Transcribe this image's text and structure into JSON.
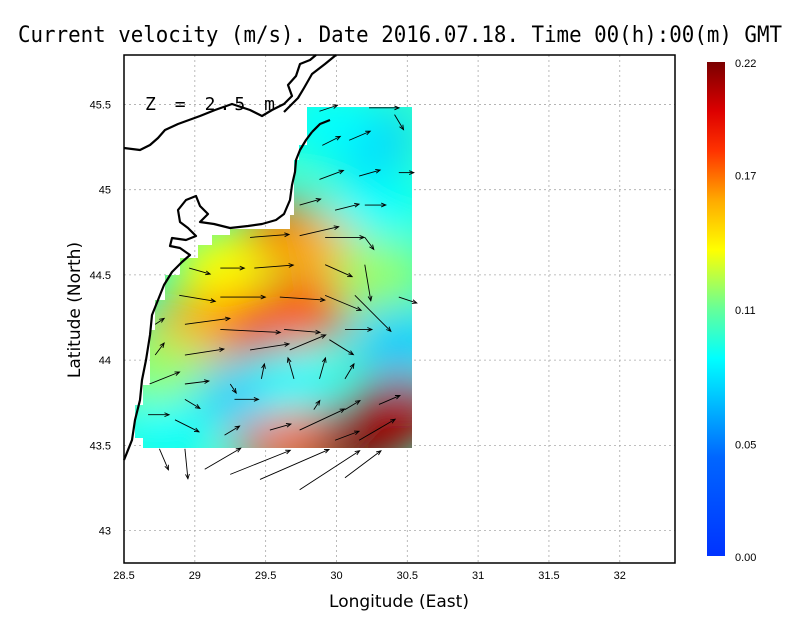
{
  "title": "Current velocity (m/s). Date 2016.07.18. Time 00(h):00(m) GMT",
  "depth_label": "Z = 2.5 m",
  "chart_data": {
    "type": "vector-field-map",
    "title": "Current velocity (m/s). Date 2016.07.18. Time 00(h):00(m) GMT",
    "xlabel": "Longitude (East)",
    "ylabel": "Latitude (North)",
    "xlim": [
      28.5,
      32.39
    ],
    "ylim": [
      42.81,
      45.79
    ],
    "xticks": [
      "28.5",
      "29",
      "29.5",
      "30",
      "30.5",
      "31",
      "31.5",
      "32"
    ],
    "xtick_values": [
      28.5,
      29,
      29.5,
      30,
      30.5,
      31,
      31.5,
      32
    ],
    "yticks": [
      "43",
      "43.5",
      "44",
      "44.5",
      "45",
      "45.5"
    ],
    "ytick_values": [
      43,
      43.5,
      44,
      44.5,
      45,
      45.5
    ],
    "grid": true,
    "colorbar": {
      "min": 0.0,
      "max": 0.22,
      "tick_labels": [
        "0.00",
        "0.05",
        "0.11",
        "0.17",
        "0.22"
      ],
      "tick_values": [
        0.0,
        0.05,
        0.11,
        0.17,
        0.22
      ],
      "colors": [
        "#0033ff",
        "#0077ff",
        "#00ccff",
        "#00ffff",
        "#33ffcc",
        "#99ff66",
        "#ffff00",
        "#ffaa00",
        "#ff5500",
        "#ff0000",
        "#aa0000",
        "#7a0000"
      ]
    },
    "background_speed": 0.085,
    "speed_field": [
      {
        "lon": 29.45,
        "lat": 44.2,
        "speed": 0.21
      },
      {
        "lon": 29.15,
        "lat": 44.22,
        "speed": 0.17
      },
      {
        "lon": 29.75,
        "lat": 44.28,
        "speed": 0.16
      },
      {
        "lon": 28.95,
        "lat": 44.15,
        "speed": 0.15
      },
      {
        "lon": 29.65,
        "lat": 44.72,
        "speed": 0.17
      },
      {
        "lon": 29.9,
        "lat": 44.65,
        "speed": 0.13
      },
      {
        "lon": 29.2,
        "lat": 44.55,
        "speed": 0.12
      },
      {
        "lon": 30.3,
        "lat": 44.5,
        "speed": 0.1
      },
      {
        "lon": 29.9,
        "lat": 43.52,
        "speed": 0.21
      },
      {
        "lon": 30.2,
        "lat": 43.55,
        "speed": 0.21
      },
      {
        "lon": 30.45,
        "lat": 43.7,
        "speed": 0.19
      },
      {
        "lon": 29.6,
        "lat": 43.55,
        "speed": 0.16
      },
      {
        "lon": 29.3,
        "lat": 43.8,
        "speed": 0.04
      },
      {
        "lon": 28.8,
        "lat": 43.6,
        "speed": 0.05
      },
      {
        "lon": 29.7,
        "lat": 43.88,
        "speed": 0.06
      },
      {
        "lon": 30.2,
        "lat": 45.3,
        "speed": 0.04
      },
      {
        "lon": 29.95,
        "lat": 45.38,
        "speed": 0.05
      },
      {
        "lon": 30.45,
        "lat": 44.1,
        "speed": 0.04
      },
      {
        "lon": 30.3,
        "lat": 44.9,
        "speed": 0.06
      },
      {
        "lon": 28.75,
        "lat": 43.95,
        "speed": 0.1
      }
    ],
    "vectors": [
      {
        "lon": 29.88,
        "lat": 45.46,
        "u": 0.06,
        "v": 0.02
      },
      {
        "lon": 30.23,
        "lat": 45.48,
        "u": 0.1,
        "v": 0.0
      },
      {
        "lon": 30.41,
        "lat": 45.44,
        "u": 0.03,
        "v": -0.05
      },
      {
        "lon": 29.9,
        "lat": 45.26,
        "u": 0.06,
        "v": 0.03
      },
      {
        "lon": 30.09,
        "lat": 45.29,
        "u": 0.07,
        "v": 0.03
      },
      {
        "lon": 29.88,
        "lat": 45.06,
        "u": 0.08,
        "v": 0.03
      },
      {
        "lon": 30.16,
        "lat": 45.08,
        "u": 0.07,
        "v": 0.02
      },
      {
        "lon": 30.44,
        "lat": 45.1,
        "u": 0.05,
        "v": 0.0
      },
      {
        "lon": 29.74,
        "lat": 44.91,
        "u": 0.07,
        "v": 0.02
      },
      {
        "lon": 29.99,
        "lat": 44.88,
        "u": 0.08,
        "v": 0.02
      },
      {
        "lon": 30.2,
        "lat": 44.91,
        "u": 0.07,
        "v": 0.0
      },
      {
        "lon": 29.39,
        "lat": 44.72,
        "u": 0.13,
        "v": 0.01
      },
      {
        "lon": 29.74,
        "lat": 44.73,
        "u": 0.13,
        "v": 0.03
      },
      {
        "lon": 29.92,
        "lat": 44.72,
        "u": 0.13,
        "v": 0.0
      },
      {
        "lon": 30.2,
        "lat": 44.72,
        "u": 0.03,
        "v": -0.04
      },
      {
        "lon": 28.96,
        "lat": 44.54,
        "u": 0.07,
        "v": -0.02
      },
      {
        "lon": 29.18,
        "lat": 44.54,
        "u": 0.08,
        "v": 0.0
      },
      {
        "lon": 29.42,
        "lat": 44.54,
        "u": 0.13,
        "v": 0.01
      },
      {
        "lon": 29.92,
        "lat": 44.56,
        "u": 0.09,
        "v": -0.04
      },
      {
        "lon": 30.2,
        "lat": 44.56,
        "u": 0.02,
        "v": -0.12
      },
      {
        "lon": 28.89,
        "lat": 44.38,
        "u": 0.12,
        "v": -0.02
      },
      {
        "lon": 29.18,
        "lat": 44.37,
        "u": 0.15,
        "v": 0.0
      },
      {
        "lon": 29.6,
        "lat": 44.37,
        "u": 0.15,
        "v": -0.01
      },
      {
        "lon": 29.92,
        "lat": 44.38,
        "u": 0.12,
        "v": -0.05
      },
      {
        "lon": 30.13,
        "lat": 44.38,
        "u": 0.12,
        "v": -0.12
      },
      {
        "lon": 30.44,
        "lat": 44.37,
        "u": 0.06,
        "v": -0.02
      },
      {
        "lon": 28.72,
        "lat": 44.21,
        "u": 0.03,
        "v": 0.02
      },
      {
        "lon": 28.93,
        "lat": 44.21,
        "u": 0.15,
        "v": 0.02
      },
      {
        "lon": 29.18,
        "lat": 44.18,
        "u": 0.2,
        "v": -0.01
      },
      {
        "lon": 29.63,
        "lat": 44.18,
        "u": 0.12,
        "v": -0.01
      },
      {
        "lon": 30.06,
        "lat": 44.18,
        "u": 0.09,
        "v": 0.0
      },
      {
        "lon": 28.72,
        "lat": 44.03,
        "u": 0.03,
        "v": 0.04
      },
      {
        "lon": 28.93,
        "lat": 44.03,
        "u": 0.13,
        "v": 0.02
      },
      {
        "lon": 29.39,
        "lat": 44.06,
        "u": 0.13,
        "v": 0.02
      },
      {
        "lon": 29.67,
        "lat": 44.06,
        "u": 0.12,
        "v": 0.05
      },
      {
        "lon": 29.95,
        "lat": 44.12,
        "u": 0.08,
        "v": -0.05
      },
      {
        "lon": 28.68,
        "lat": 43.86,
        "u": 0.1,
        "v": 0.04
      },
      {
        "lon": 28.93,
        "lat": 43.86,
        "u": 0.08,
        "v": 0.01
      },
      {
        "lon": 29.25,
        "lat": 43.86,
        "u": 0.02,
        "v": -0.03
      },
      {
        "lon": 29.47,
        "lat": 43.89,
        "u": 0.01,
        "v": 0.05
      },
      {
        "lon": 29.7,
        "lat": 43.89,
        "u": -0.02,
        "v": 0.07
      },
      {
        "lon": 29.88,
        "lat": 43.89,
        "u": 0.02,
        "v": 0.07
      },
      {
        "lon": 30.06,
        "lat": 43.89,
        "u": 0.03,
        "v": 0.05
      },
      {
        "lon": 28.67,
        "lat": 43.68,
        "u": 0.07,
        "v": 0.0
      },
      {
        "lon": 28.93,
        "lat": 43.77,
        "u": 0.05,
        "v": -0.03
      },
      {
        "lon": 29.28,
        "lat": 43.77,
        "u": 0.08,
        "v": 0.0
      },
      {
        "lon": 29.84,
        "lat": 43.71,
        "u": 0.02,
        "v": 0.03
      },
      {
        "lon": 30.06,
        "lat": 43.71,
        "u": 0.05,
        "v": 0.03
      },
      {
        "lon": 30.3,
        "lat": 43.74,
        "u": 0.07,
        "v": 0.03
      },
      {
        "lon": 28.86,
        "lat": 43.65,
        "u": 0.08,
        "v": -0.04
      },
      {
        "lon": 29.21,
        "lat": 43.56,
        "u": 0.05,
        "v": 0.03
      },
      {
        "lon": 29.53,
        "lat": 43.59,
        "u": 0.07,
        "v": 0.02
      },
      {
        "lon": 29.74,
        "lat": 43.59,
        "u": 0.15,
        "v": 0.07
      },
      {
        "lon": 29.99,
        "lat": 43.53,
        "u": 0.08,
        "v": 0.03
      },
      {
        "lon": 30.16,
        "lat": 43.53,
        "u": 0.12,
        "v": 0.07
      },
      {
        "lon": 28.75,
        "lat": 43.48,
        "u": 0.03,
        "v": -0.07
      },
      {
        "lon": 28.93,
        "lat": 43.48,
        "u": 0.01,
        "v": -0.1
      },
      {
        "lon": 29.07,
        "lat": 43.36,
        "u": 0.12,
        "v": 0.07
      },
      {
        "lon": 29.25,
        "lat": 43.33,
        "u": 0.2,
        "v": 0.08
      },
      {
        "lon": 29.46,
        "lat": 43.3,
        "u": 0.23,
        "v": 0.1
      },
      {
        "lon": 29.74,
        "lat": 43.24,
        "u": 0.2,
        "v": 0.13
      },
      {
        "lon": 30.06,
        "lat": 43.31,
        "u": 0.12,
        "v": 0.09
      }
    ]
  }
}
